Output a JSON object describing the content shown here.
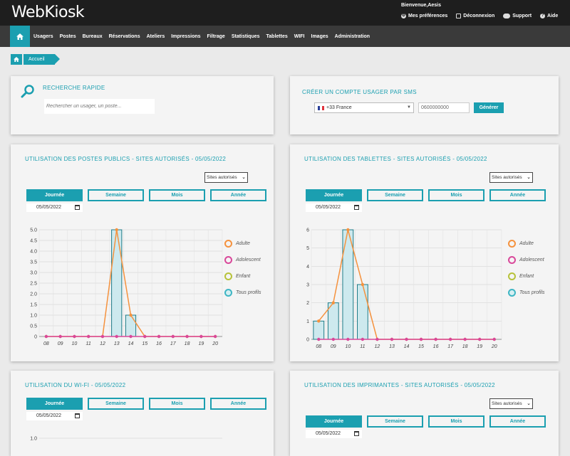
{
  "header": {
    "logo": "WebKiosk",
    "welcome": "Bienvenue,Aesis",
    "links": [
      {
        "label": "Mes préférences",
        "icon": "gear-icon"
      },
      {
        "label": "Déconnexion",
        "icon": "logout-icon"
      },
      {
        "label": "Support",
        "icon": "support-icon"
      },
      {
        "label": "Aide",
        "icon": "help-icon"
      }
    ]
  },
  "nav": {
    "items": [
      "Usagers",
      "Postes",
      "Bureaux",
      "Réservations",
      "Ateliers",
      "Impressions",
      "Filtrage",
      "Statistiques",
      "Tablettes",
      "WIFI",
      "Images",
      "Administration"
    ]
  },
  "breadcrumb": {
    "current": "Accueil"
  },
  "quick_search": {
    "title": "RECHERCHE RAPIDE",
    "placeholder": "Rechercher un usager, un poste..."
  },
  "sms_account": {
    "title": "CRÉER UN COMPTE USAGER PAR SMS",
    "country": "+33 France",
    "phone_placeholder": "0600000000",
    "button": "Générer"
  },
  "periods": [
    "Journée",
    "Semaine",
    "Mois",
    "Année"
  ],
  "date_value": "05/05/2022",
  "sites_option": "Sites autorisés",
  "legend": [
    {
      "label": "Adulte",
      "color": "#f5923e"
    },
    {
      "label": "Adolescent",
      "color": "#d9489a"
    },
    {
      "label": "Enfant",
      "color": "#b7c23a"
    },
    {
      "label": "Tous profils",
      "color": "#3fb6c4"
    }
  ],
  "panels": {
    "postes": {
      "title": "UTILISATION DES POSTES PUBLICS - SITES AUTORISÉS - 05/05/2022"
    },
    "tablettes": {
      "title": "UTILISATION DES TABLETTES - SITES AUTORISÉS - 05/05/2022"
    },
    "wifi": {
      "title": "UTILISATION DU WI-FI - 05/05/2022"
    },
    "imprimantes": {
      "title": "UTILISATION DES IMPRIMANTES - SITES AUTORISÉS - 05/05/2022"
    }
  },
  "chart_data": [
    {
      "type": "bar",
      "categories": [
        "08",
        "09",
        "10",
        "11",
        "12",
        "13",
        "14",
        "15",
        "16",
        "17",
        "18",
        "19",
        "20"
      ],
      "ylim": [
        0,
        5.0
      ],
      "yticks": [
        "0",
        "0.5",
        "1.0",
        "1.5",
        "2.0",
        "2.5",
        "3.0",
        "3.5",
        "4.0",
        "4.5",
        "5.0"
      ],
      "series": [
        {
          "name": "Tous profils",
          "type": "bar",
          "values": [
            0,
            0,
            0,
            0,
            0,
            5,
            1,
            0,
            0,
            0,
            0,
            0,
            0
          ]
        },
        {
          "name": "Adulte",
          "type": "line",
          "values": [
            0,
            0,
            0,
            0,
            0,
            5,
            1,
            0,
            0,
            0,
            0,
            0,
            0
          ]
        },
        {
          "name": "Adolescent",
          "type": "line",
          "values": [
            0,
            0,
            0,
            0,
            0,
            0,
            0,
            0,
            0,
            0,
            0,
            0,
            0
          ]
        }
      ]
    },
    {
      "type": "bar",
      "categories": [
        "08",
        "09",
        "10",
        "11",
        "12",
        "13",
        "14",
        "15",
        "16",
        "17",
        "18",
        "19",
        "20"
      ],
      "ylim": [
        0,
        6
      ],
      "yticks": [
        "0",
        "1",
        "2",
        "3",
        "4",
        "5",
        "6"
      ],
      "series": [
        {
          "name": "Tous profils",
          "type": "bar",
          "values": [
            1,
            2,
            6,
            3,
            0,
            0,
            0,
            0,
            0,
            0,
            0,
            0,
            0
          ]
        },
        {
          "name": "Adulte",
          "type": "line",
          "values": [
            1,
            2,
            6,
            3,
            0,
            0,
            0,
            0,
            0,
            0,
            0,
            0,
            0
          ]
        },
        {
          "name": "Adolescent",
          "type": "line",
          "values": [
            0,
            0,
            0,
            0,
            0,
            0,
            0,
            0,
            0,
            0,
            0,
            0,
            0
          ]
        }
      ]
    },
    {
      "type": "bar",
      "categories": [],
      "ylim": [
        0,
        1.0
      ],
      "yticks": [
        "1.0"
      ],
      "series": []
    }
  ]
}
